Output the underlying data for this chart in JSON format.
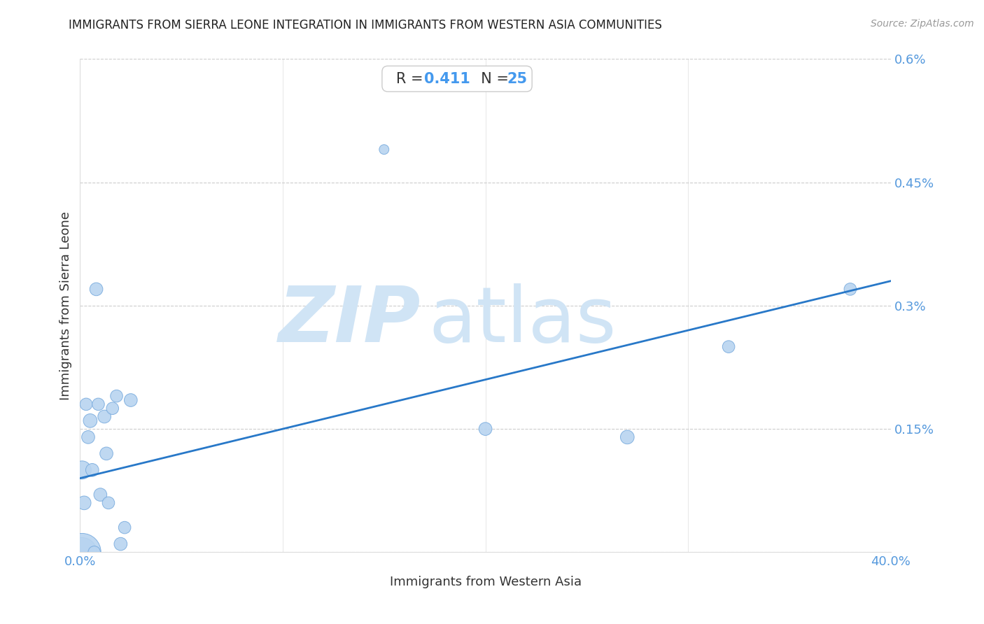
{
  "title": "IMMIGRANTS FROM SIERRA LEONE INTEGRATION IN IMMIGRANTS FROM WESTERN ASIA COMMUNITIES",
  "source": "Source: ZipAtlas.com",
  "xlabel": "Immigrants from Western Asia",
  "ylabel": "Immigrants from Sierra Leone",
  "R": 0.411,
  "N": 25,
  "x_min": 0.0,
  "x_max": 0.4,
  "y_min": 0.0,
  "y_max": 0.006,
  "x_ticks": [
    0.0,
    0.1,
    0.2,
    0.3,
    0.4
  ],
  "x_tick_labels": [
    "0.0%",
    "",
    "",
    "",
    "40.0%"
  ],
  "y_ticks": [
    0.0,
    0.0015,
    0.003,
    0.0045,
    0.006
  ],
  "y_tick_labels": [
    "",
    "0.15%",
    "0.3%",
    "0.45%",
    "0.6%"
  ],
  "scatter_x": [
    0.001,
    0.001,
    0.001,
    0.002,
    0.003,
    0.004,
    0.005,
    0.006,
    0.007,
    0.008,
    0.009,
    0.01,
    0.012,
    0.013,
    0.014,
    0.016,
    0.018,
    0.02,
    0.022,
    0.025,
    0.15,
    0.2,
    0.27,
    0.32,
    0.38
  ],
  "scatter_y": [
    0.001,
    0.0,
    0.0,
    0.0006,
    0.0018,
    0.0014,
    0.0016,
    0.001,
    0.0,
    0.0032,
    0.0018,
    0.0007,
    0.00165,
    0.0012,
    0.0006,
    0.00175,
    0.0019,
    0.0001,
    0.0003,
    0.00185,
    0.0049,
    0.0015,
    0.0014,
    0.0025,
    0.0032
  ],
  "scatter_sizes": [
    350,
    900,
    1500,
    200,
    160,
    180,
    200,
    180,
    160,
    180,
    160,
    180,
    180,
    180,
    160,
    160,
    160,
    180,
    160,
    180,
    100,
    180,
    200,
    160,
    160
  ],
  "scatter_color": "#b8d4f0",
  "scatter_edgecolor": "#7aacde",
  "line_color": "#2878c8",
  "regression_x_start": 0.0,
  "regression_y_start": 0.0009,
  "regression_x_end": 0.4,
  "regression_y_end": 0.0033,
  "grid_color": "#cccccc",
  "background_color": "#ffffff",
  "title_color": "#222222",
  "axis_label_color": "#333333",
  "tick_color": "#5599dd",
  "watermark_zip": "ZIP",
  "watermark_atlas": "atlas",
  "watermark_color": "#d0e4f5",
  "stat_R_color": "#4499ee",
  "stat_N_color": "#4499ee",
  "stat_label_color": "#333333",
  "stat_box_edge_color": "#cccccc"
}
